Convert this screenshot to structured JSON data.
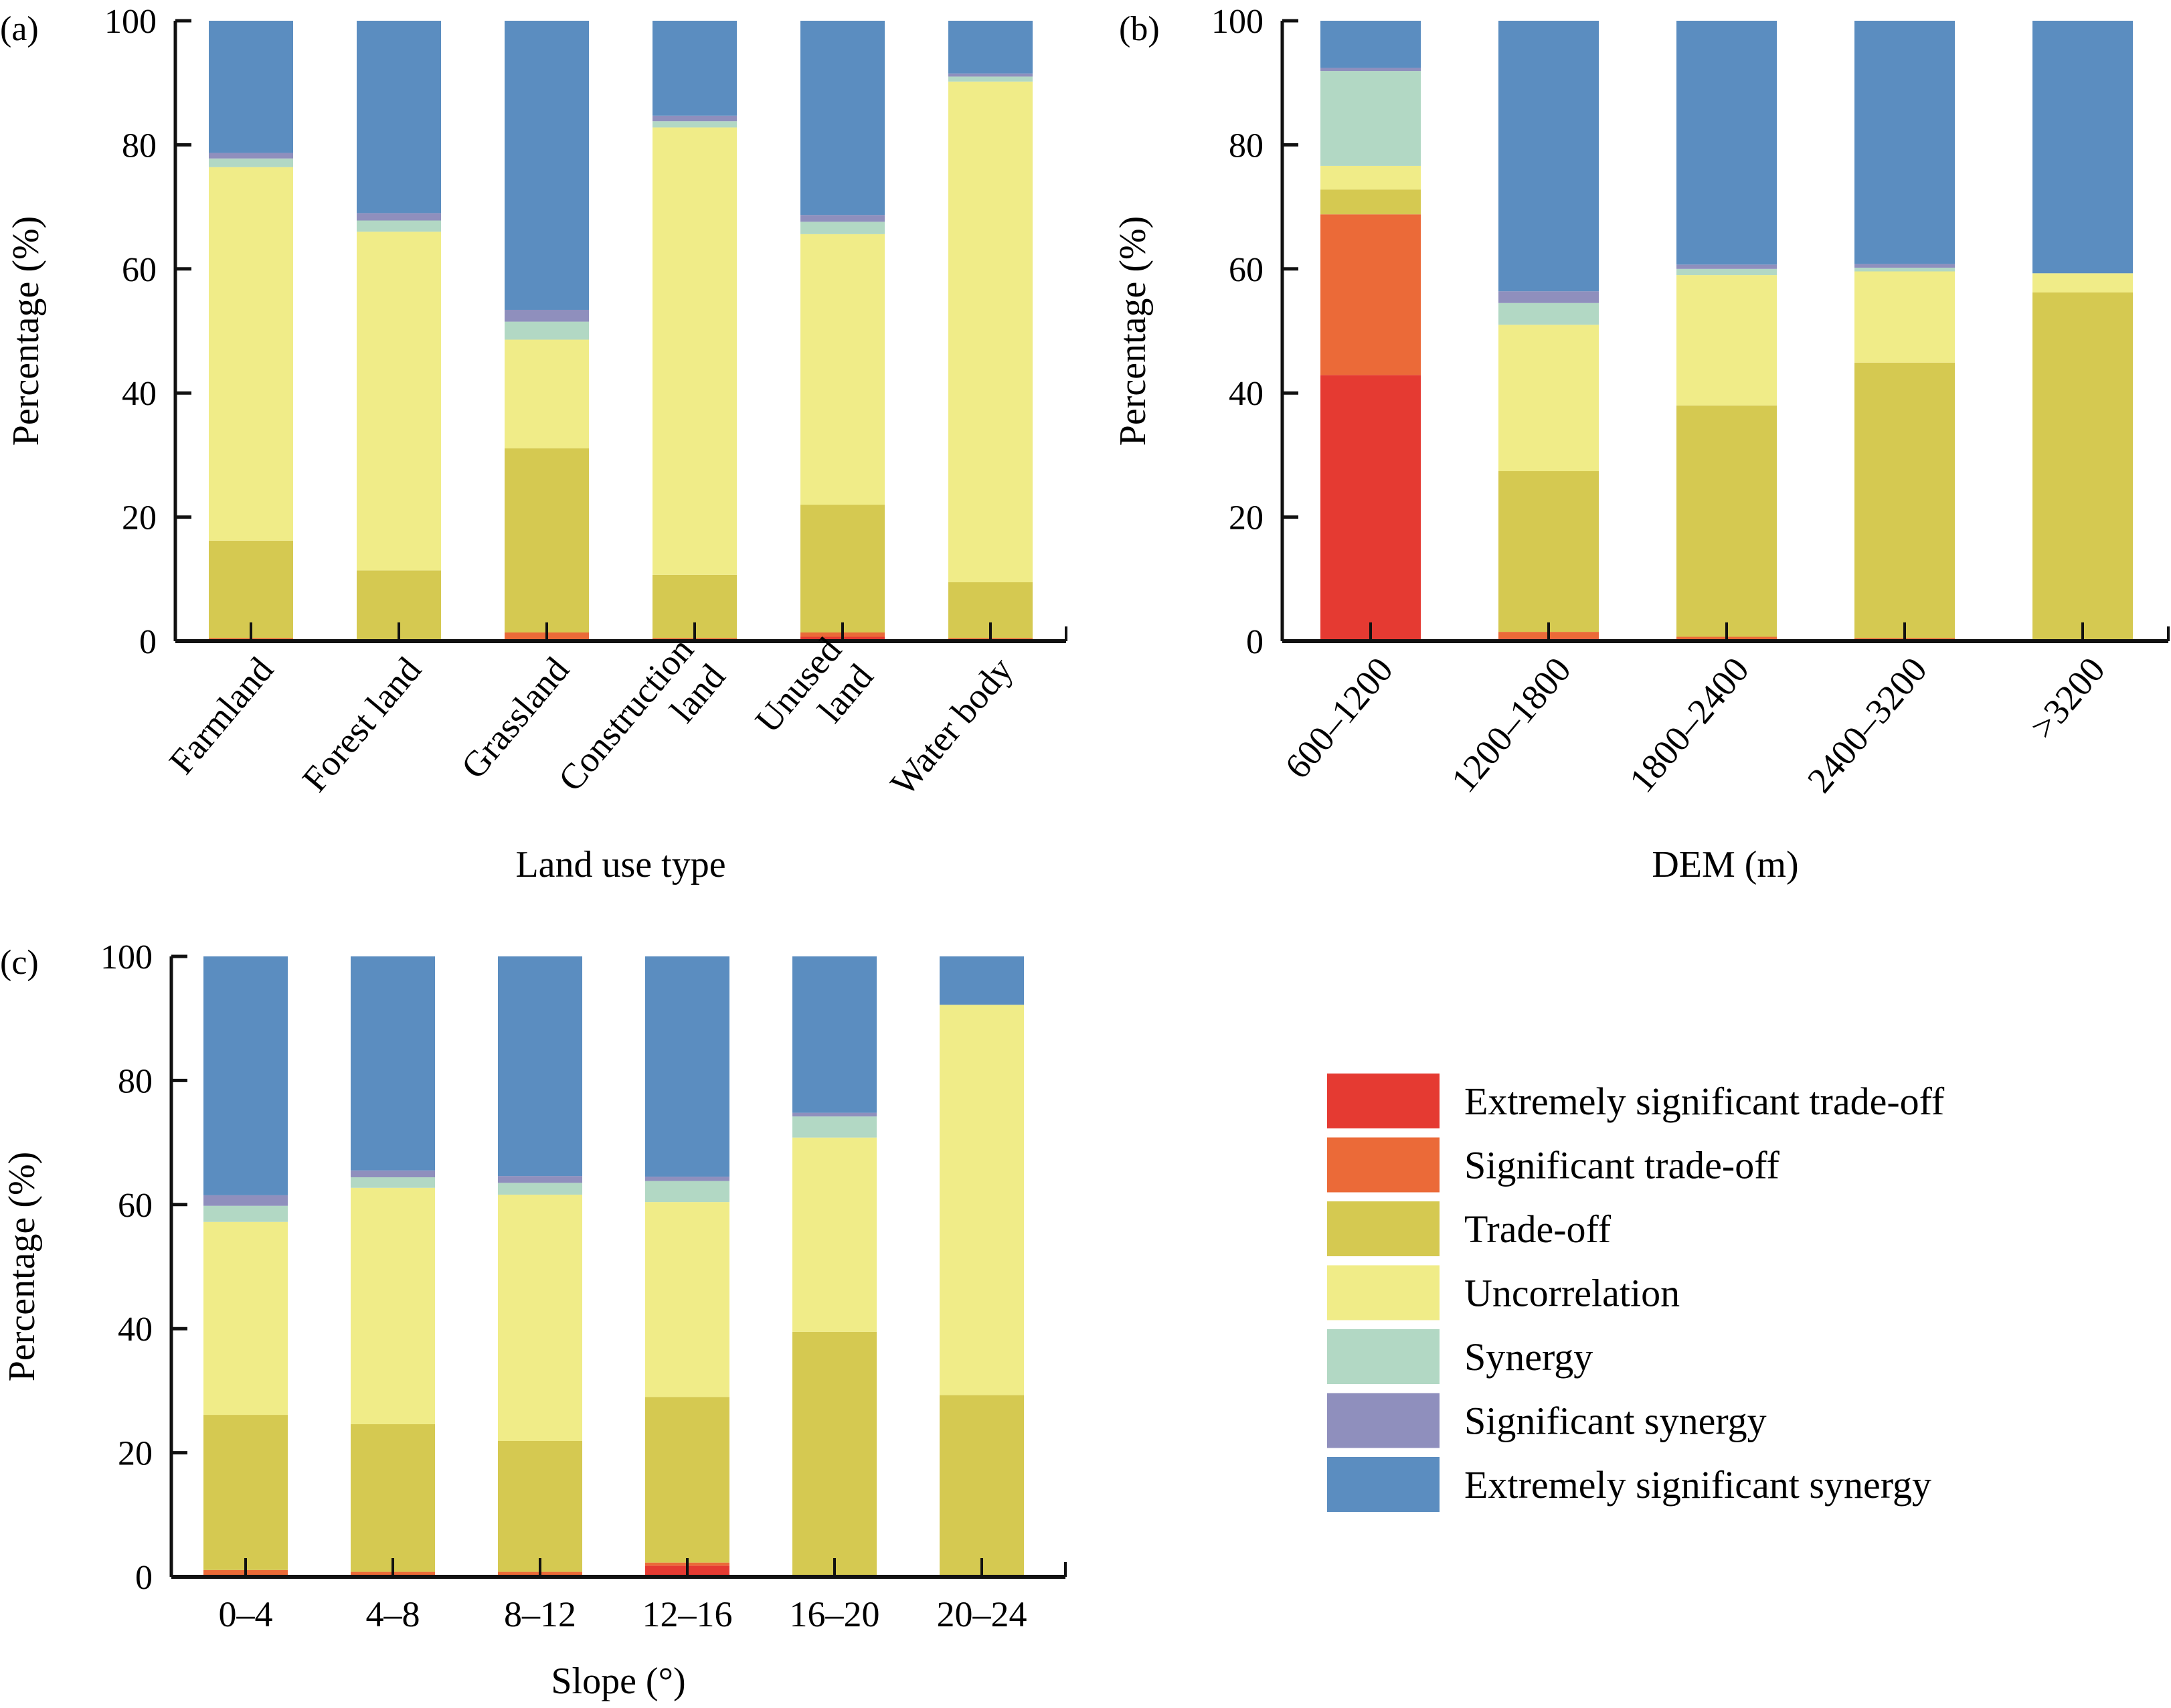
{
  "legend": [
    {
      "key": "ext_tradeoff",
      "label": "Extremely significant trade-off",
      "color": "#E53A32"
    },
    {
      "key": "sig_tradeoff",
      "label": "Significant trade-off",
      "color": "#EB6A38"
    },
    {
      "key": "tradeoff",
      "label": "Trade-off",
      "color": "#D5C951"
    },
    {
      "key": "uncorrelation",
      "label": "Uncorrelation",
      "color": "#F0EC88"
    },
    {
      "key": "synergy",
      "label": "Synergy",
      "color": "#B2D8C4"
    },
    {
      "key": "sig_synergy",
      "label": "Significant synergy",
      "color": "#8F8FBD"
    },
    {
      "key": "ext_synergy",
      "label": "Extremely significant synergy",
      "color": "#5B8DC0"
    }
  ],
  "chart_data": [
    {
      "type": "bar",
      "stacked": true,
      "panel": "(a)",
      "title": "",
      "xlabel": "Land use type",
      "ylabel": "Percentage (%)",
      "ylim": [
        0,
        100
      ],
      "yticks": [
        0,
        20,
        40,
        60,
        80,
        100
      ],
      "grid": false,
      "xtick_rotation": "diagonal",
      "categories": [
        "Farmland",
        "Forest land",
        "Grassland",
        "Construction land",
        "Unused land",
        "Water body"
      ],
      "category_lines": [
        [
          "Farmland"
        ],
        [
          "Forest land"
        ],
        [
          "Grassland"
        ],
        [
          "Construction",
          "land"
        ],
        [
          "Unused",
          "land"
        ],
        [
          "Water body"
        ]
      ],
      "series": [
        {
          "name": "Extremely significant trade-off",
          "values": [
            0.1,
            0.0,
            0.2,
            0.1,
            0.7,
            0.1
          ]
        },
        {
          "name": "Significant trade-off",
          "values": [
            0.4,
            0.0,
            1.2,
            0.4,
            0.7,
            0.4
          ]
        },
        {
          "name": "Trade-off",
          "values": [
            15.7,
            11.4,
            29.7,
            10.2,
            20.6,
            9.0
          ]
        },
        {
          "name": "Uncorrelation",
          "values": [
            60.2,
            54.6,
            17.5,
            72.1,
            43.6,
            80.7
          ]
        },
        {
          "name": "Synergy",
          "values": [
            1.4,
            1.8,
            2.9,
            1.0,
            2.0,
            0.8
          ]
        },
        {
          "name": "Significant synergy",
          "values": [
            0.9,
            1.2,
            1.9,
            0.9,
            1.1,
            0.5
          ]
        },
        {
          "name": "Extremely significant synergy",
          "values": [
            21.3,
            31.0,
            46.6,
            15.3,
            31.3,
            8.5
          ]
        }
      ]
    },
    {
      "type": "bar",
      "stacked": true,
      "panel": "(b)",
      "title": "",
      "xlabel": "DEM (m)",
      "ylabel": "Percentage (%)",
      "ylim": [
        0,
        100
      ],
      "yticks": [
        0,
        20,
        40,
        60,
        80,
        100
      ],
      "grid": false,
      "xtick_rotation": "diagonal",
      "categories": [
        "600–1200",
        "1200–1800",
        "1800–2400",
        "2400–3200",
        ">3200"
      ],
      "category_lines": [
        [
          "600–1200"
        ],
        [
          "1200–1800"
        ],
        [
          "1800–2400"
        ],
        [
          "2400–3200"
        ],
        [
          ">3200"
        ]
      ],
      "series": [
        {
          "name": "Extremely significant trade-off",
          "values": [
            42.9,
            0.4,
            0.1,
            0.1,
            0.0
          ]
        },
        {
          "name": "Significant trade-off",
          "values": [
            25.9,
            1.1,
            0.6,
            0.4,
            0.0
          ]
        },
        {
          "name": "Trade-off",
          "values": [
            4.0,
            25.9,
            37.3,
            44.4,
            56.2
          ]
        },
        {
          "name": "Uncorrelation",
          "values": [
            3.8,
            23.6,
            21.0,
            14.7,
            3.1
          ]
        },
        {
          "name": "Synergy",
          "values": [
            15.3,
            3.5,
            1.0,
            0.6,
            0.0
          ]
        },
        {
          "name": "Significant synergy",
          "values": [
            0.5,
            1.9,
            0.7,
            0.6,
            0.0
          ]
        },
        {
          "name": "Extremely significant synergy",
          "values": [
            7.6,
            43.6,
            39.3,
            39.2,
            40.7
          ]
        }
      ]
    },
    {
      "type": "bar",
      "stacked": true,
      "panel": "(c)",
      "title": "",
      "xlabel": "Slope (°)",
      "ylabel": "Percentage (%)",
      "ylim": [
        0,
        100
      ],
      "yticks": [
        0,
        20,
        40,
        60,
        80,
        100
      ],
      "grid": false,
      "xtick_rotation": "none",
      "categories": [
        "0–4",
        "4–8",
        "8–12",
        "12–16",
        "16–20",
        "20–24"
      ],
      "category_lines": [
        [
          "0–4"
        ],
        [
          "4–8"
        ],
        [
          "8–12"
        ],
        [
          "12–16"
        ],
        [
          "16–20"
        ],
        [
          "20–24"
        ]
      ],
      "series": [
        {
          "name": "Extremely significant trade-off",
          "values": [
            0.2,
            0.1,
            0.1,
            1.8,
            0.0,
            0.0
          ]
        },
        {
          "name": "Significant trade-off",
          "values": [
            0.9,
            0.7,
            0.7,
            0.5,
            0.0,
            0.0
          ]
        },
        {
          "name": "Trade-off",
          "values": [
            25.0,
            23.8,
            21.1,
            26.7,
            39.5,
            29.3
          ]
        },
        {
          "name": "Uncorrelation",
          "values": [
            31.1,
            38.1,
            39.7,
            31.4,
            31.3,
            62.9
          ]
        },
        {
          "name": "Synergy",
          "values": [
            2.6,
            1.7,
            1.9,
            3.4,
            3.4,
            0.0
          ]
        },
        {
          "name": "Significant synergy",
          "values": [
            1.7,
            1.1,
            1.1,
            0.7,
            0.6,
            0.0
          ]
        },
        {
          "name": "Extremely significant synergy",
          "values": [
            38.5,
            34.5,
            35.4,
            35.5,
            25.2,
            7.8
          ]
        }
      ]
    }
  ]
}
